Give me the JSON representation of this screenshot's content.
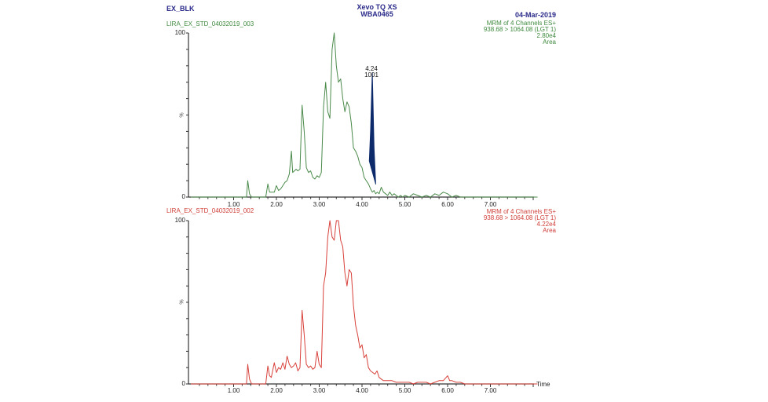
{
  "header": {
    "left_title": "EX_BLK",
    "instrument": "Xevo TQ XS",
    "instrument_id": "WBA0465",
    "date": "04-Mar-2019"
  },
  "colors": {
    "header_text": "#2a2a8a",
    "top_trace": "#4a8a4a",
    "top_text": "#3f8a3f",
    "bottom_trace": "#d8403a",
    "bottom_text": "#d0403a",
    "integrated_peak_fill": "#0d2a6b",
    "axis": "#333333"
  },
  "top_panel": {
    "sample_name": "LIRA_EX_STD_04032019_003",
    "channel": "MRM of 4 Channels ES+",
    "transition": "938.68 > 1064.08 (LGT 1)",
    "intensity": "2.80e4",
    "mode": "Area",
    "peak_label_rt": "4.24",
    "peak_label_area": "1001"
  },
  "bottom_panel": {
    "sample_name": "LIRA_EX_STD_04032019_002",
    "channel": "MRM of 4 Channels ES+",
    "transition": "938.68 > 1064.08 (LGT 1)",
    "intensity": "4.22e4",
    "mode": "Area"
  },
  "axes": {
    "y_max_label": "100",
    "y_min_label": "0",
    "y_unit": "%",
    "x_label": "Time",
    "x_ticks": [
      "1.00",
      "2.00",
      "3.00",
      "4.00",
      "5.00",
      "6.00",
      "7.00"
    ]
  },
  "chart_data": [
    {
      "type": "line",
      "title": "LIRA_EX_STD_04032019_003 — MRM of 4 Channels ES+ 938.68 > 1064.08 (LGT 1)",
      "xlabel": "Time",
      "ylabel": "%",
      "xlim": [
        0,
        8.1
      ],
      "ylim": [
        0,
        100
      ],
      "x_ticks": [
        1,
        2,
        3,
        4,
        5,
        6,
        7
      ],
      "annotations": [
        {
          "x": 4.24,
          "text": "4.24 / 1001",
          "type": "integrated-peak"
        }
      ],
      "series": [
        {
          "name": "LIRA_EX_STD_04032019_003",
          "x": [
            0.0,
            1.3,
            1.33,
            1.37,
            1.42,
            1.46,
            1.75,
            1.8,
            1.84,
            1.88,
            1.95,
            2.0,
            2.05,
            2.1,
            2.15,
            2.2,
            2.25,
            2.3,
            2.35,
            2.38,
            2.42,
            2.46,
            2.5,
            2.55,
            2.6,
            2.65,
            2.7,
            2.75,
            2.8,
            2.85,
            2.9,
            2.95,
            3.0,
            3.05,
            3.1,
            3.15,
            3.2,
            3.25,
            3.3,
            3.35,
            3.4,
            3.45,
            3.5,
            3.55,
            3.6,
            3.65,
            3.7,
            3.75,
            3.8,
            3.85,
            3.9,
            3.95,
            4.0,
            4.05,
            4.1,
            4.15,
            4.2,
            4.24,
            4.28,
            4.32,
            4.36,
            4.4,
            4.45,
            4.5,
            4.55,
            4.6,
            4.65,
            4.7,
            4.75,
            4.8,
            4.85,
            4.9,
            4.95,
            5.0,
            5.1,
            5.2,
            5.3,
            5.4,
            5.5,
            5.6,
            5.7,
            5.8,
            5.9,
            6.0,
            6.05,
            6.1,
            6.2,
            6.3,
            6.4,
            6.5,
            6.6,
            6.7,
            8.1
          ],
          "y": [
            0,
            0,
            10,
            2,
            0,
            0,
            0,
            8,
            3,
            3,
            3,
            7,
            4,
            5,
            7,
            9,
            10,
            14,
            28,
            15,
            16,
            17,
            16,
            17,
            56,
            40,
            18,
            15,
            16,
            12,
            11,
            13,
            12,
            15,
            55,
            70,
            52,
            48,
            90,
            100,
            80,
            70,
            72,
            60,
            52,
            58,
            55,
            45,
            30,
            28,
            25,
            20,
            18,
            12,
            10,
            8,
            5,
            3,
            4,
            2,
            3,
            2,
            6,
            3,
            2,
            1,
            3,
            1,
            2,
            1,
            0,
            1,
            0,
            1,
            0,
            2,
            1,
            0,
            1,
            0,
            2,
            1,
            3,
            2,
            1,
            0,
            1,
            0,
            0,
            0,
            0,
            0,
            0
          ]
        }
      ]
    },
    {
      "type": "line",
      "title": "LIRA_EX_STD_04032019_002 — MRM of 4 Channels ES+ 938.68 > 1064.08 (LGT 1)",
      "xlabel": "Time",
      "ylabel": "%",
      "xlim": [
        0,
        8.1
      ],
      "ylim": [
        0,
        100
      ],
      "x_ticks": [
        1,
        2,
        3,
        4,
        5,
        6,
        7
      ],
      "series": [
        {
          "name": "LIRA_EX_STD_04032019_002",
          "x": [
            0.0,
            1.3,
            1.33,
            1.37,
            1.42,
            1.46,
            1.75,
            1.8,
            1.84,
            1.88,
            1.95,
            2.0,
            2.05,
            2.1,
            2.15,
            2.2,
            2.25,
            2.3,
            2.35,
            2.4,
            2.45,
            2.5,
            2.55,
            2.6,
            2.65,
            2.7,
            2.75,
            2.8,
            2.85,
            2.9,
            2.95,
            3.0,
            3.05,
            3.1,
            3.15,
            3.2,
            3.25,
            3.3,
            3.35,
            3.4,
            3.45,
            3.5,
            3.55,
            3.6,
            3.65,
            3.7,
            3.75,
            3.8,
            3.85,
            3.9,
            3.95,
            4.0,
            4.05,
            4.1,
            4.15,
            4.2,
            4.25,
            4.3,
            4.35,
            4.4,
            4.45,
            4.5,
            4.6,
            4.7,
            4.8,
            4.9,
            5.0,
            5.1,
            5.2,
            5.3,
            5.4,
            5.5,
            5.6,
            5.7,
            5.8,
            5.9,
            6.0,
            6.05,
            6.1,
            6.2,
            6.3,
            6.4,
            6.5,
            6.6,
            6.7,
            8.1
          ],
          "y": [
            0,
            0,
            12,
            3,
            0,
            0,
            0,
            11,
            5,
            4,
            13,
            7,
            10,
            9,
            13,
            9,
            17,
            12,
            10,
            11,
            13,
            8,
            10,
            45,
            30,
            12,
            10,
            11,
            9,
            10,
            20,
            12,
            10,
            60,
            68,
            90,
            100,
            90,
            88,
            100,
            100,
            88,
            84,
            68,
            60,
            70,
            68,
            48,
            36,
            30,
            22,
            24,
            16,
            18,
            10,
            8,
            7,
            6,
            8,
            4,
            3,
            2,
            2,
            2,
            1,
            1,
            1,
            1,
            0,
            1,
            1,
            1,
            0,
            1,
            2,
            2,
            5,
            2,
            2,
            1,
            1,
            0,
            0,
            0,
            0,
            0
          ]
        }
      ]
    }
  ]
}
